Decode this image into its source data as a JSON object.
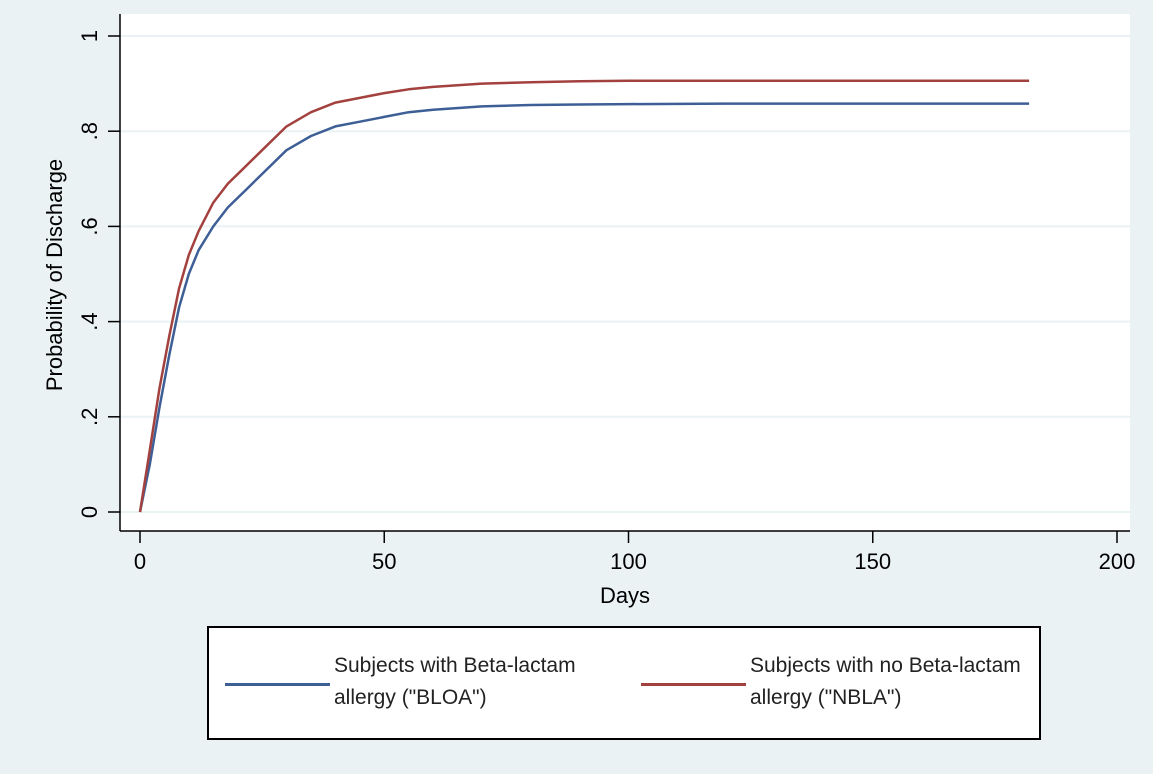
{
  "chart_data": {
    "type": "line",
    "title": "",
    "xlabel": "Days",
    "ylabel": "Probability of Discharge",
    "xlim": [
      0,
      200
    ],
    "ylim": [
      0,
      1
    ],
    "xticks": [
      0,
      50,
      100,
      150,
      200
    ],
    "xtick_labels": [
      "0",
      "50",
      "100",
      "150",
      "200"
    ],
    "yticks": [
      0,
      0.2,
      0.4,
      0.6,
      0.8,
      1
    ],
    "ytick_labels": [
      "0",
      ".2",
      ".4",
      ".6",
      ".8",
      "1"
    ],
    "grid": "horizontal",
    "legend_position": "bottom",
    "series": [
      {
        "name": "Subjects with Beta-lactam allergy (\"BLOA\")",
        "color": "#3e5f96",
        "x": [
          0,
          2,
          4,
          6,
          8,
          10,
          12,
          15,
          18,
          21,
          25,
          30,
          35,
          40,
          45,
          50,
          55,
          60,
          70,
          80,
          90,
          100,
          120,
          140,
          160,
          182
        ],
        "y": [
          0,
          0.1,
          0.22,
          0.33,
          0.43,
          0.5,
          0.55,
          0.6,
          0.64,
          0.67,
          0.71,
          0.76,
          0.79,
          0.81,
          0.82,
          0.83,
          0.84,
          0.845,
          0.852,
          0.855,
          0.856,
          0.857,
          0.858,
          0.858,
          0.858,
          0.858
        ]
      },
      {
        "name": "Subjects with no Beta-lactam allergy (\"NBLA\")",
        "color": "#a3413f",
        "x": [
          0,
          2,
          4,
          6,
          8,
          10,
          12,
          15,
          18,
          21,
          25,
          30,
          35,
          40,
          45,
          50,
          55,
          60,
          70,
          80,
          90,
          100,
          120,
          140,
          160,
          182
        ],
        "y": [
          0,
          0.13,
          0.26,
          0.37,
          0.47,
          0.54,
          0.59,
          0.65,
          0.69,
          0.72,
          0.76,
          0.81,
          0.84,
          0.86,
          0.87,
          0.88,
          0.888,
          0.893,
          0.9,
          0.903,
          0.905,
          0.906,
          0.906,
          0.906,
          0.906,
          0.906
        ]
      }
    ]
  },
  "legend": {
    "items": [
      {
        "label": "Subjects with Beta-lactam allergy (\"BLOA\")",
        "color": "#3e5f96"
      },
      {
        "label": "Subjects with no Beta-lactam allergy (\"NBLA\")",
        "color": "#a3413f"
      }
    ]
  }
}
